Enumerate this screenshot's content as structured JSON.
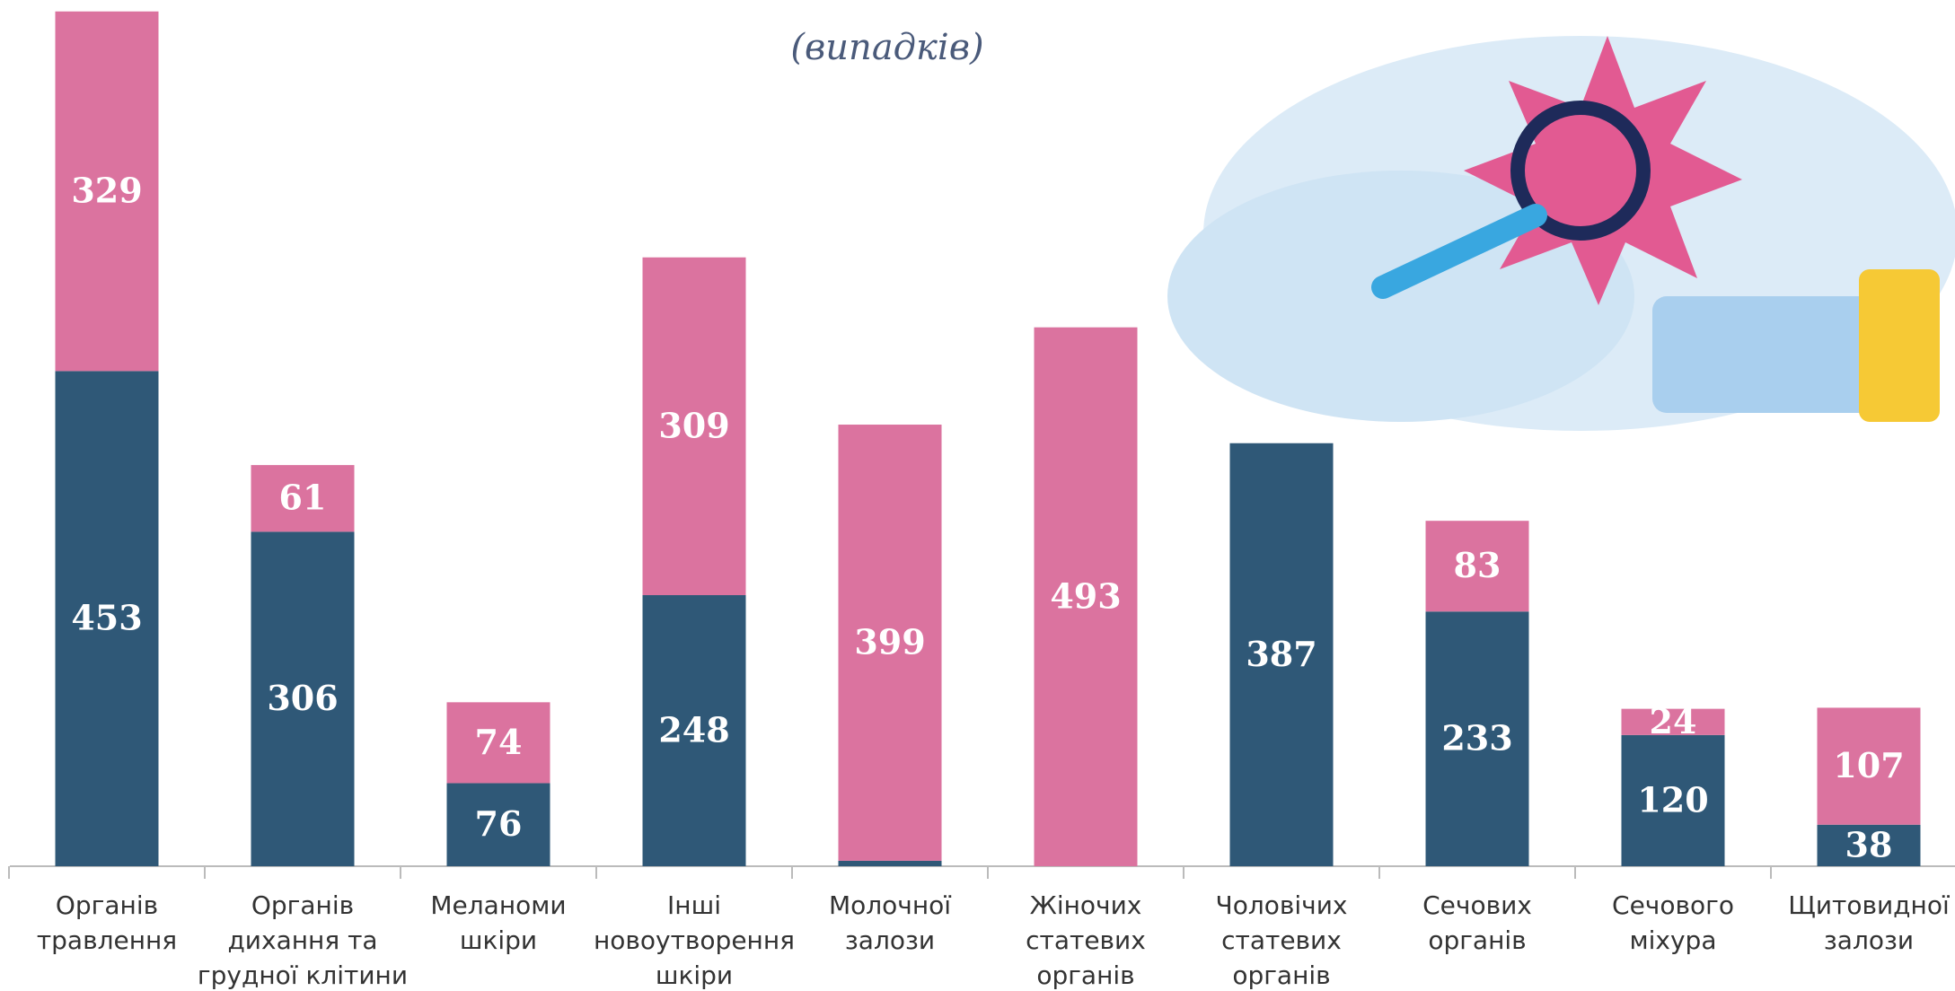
{
  "chart_data": {
    "type": "stacked_bar",
    "title": "(випадків)",
    "categories": [
      "Органів\nтравлення",
      "Органів\nдихання та\nгрудної клітини",
      "Меланоми\nшкіри",
      "Інші\nновоутворення\nшкіри",
      "Молочної\nзалози",
      "Жіночих\nстатевих\nорганів",
      "Чоловічих\nстатевих\nорганів",
      "Сечових\nорганів",
      "Сечового\nміхура",
      "Щитовидної\nзалози"
    ],
    "series": [
      {
        "color": "#2f5877",
        "values": [
          453,
          306,
          76,
          248,
          5,
          null,
          387,
          233,
          120,
          38
        ]
      },
      {
        "color": "#db739f",
        "values": [
          329,
          61,
          74,
          309,
          399,
          493,
          null,
          83,
          24,
          107
        ]
      }
    ],
    "ylim": [
      0,
      790
    ]
  }
}
